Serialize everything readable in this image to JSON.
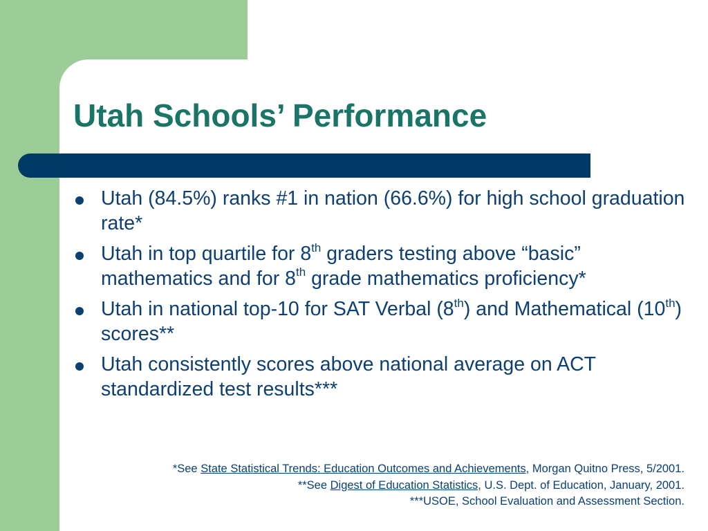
{
  "slide": {
    "title": "Utah Schools’ Performance",
    "bullets": {
      "b1": {
        "text": "Utah (84.5%) ranks #1 in nation (66.6%) for high school graduation rate*"
      },
      "b2": {
        "t1": "Utah in top quartile for 8",
        "s1": "th",
        "t2": " graders testing above “basic” mathematics and for 8",
        "s2": "th",
        "t3": " grade mathematics proficiency*"
      },
      "b3": {
        "t1": "Utah in national top-10 for SAT Verbal (8",
        "s1": "th",
        "t2": ") and Mathematical (10",
        "s2": "th",
        "t3": ") scores**"
      },
      "b4": {
        "text": "Utah consistently scores above national average on ACT standardized test results***"
      }
    },
    "footnotes": {
      "f1": {
        "prefix": "*See ",
        "source": "State Statistical Trends: Education Outcomes and Achievements",
        "suffix": ", Morgan Quitno Press, 5/2001."
      },
      "f2": {
        "prefix": "**See ",
        "source": "Digest of Education Statistics",
        "suffix": ", U.S. Dept. of Education, January, 2001."
      },
      "f3": {
        "text": "***USOE, School Evaluation and Assessment Section."
      }
    }
  },
  "colors": {
    "accent_green": "#9ccc98",
    "title_teal": "#1a7566",
    "bar_navy": "#003a66",
    "body_blue": "#0c3f73"
  }
}
